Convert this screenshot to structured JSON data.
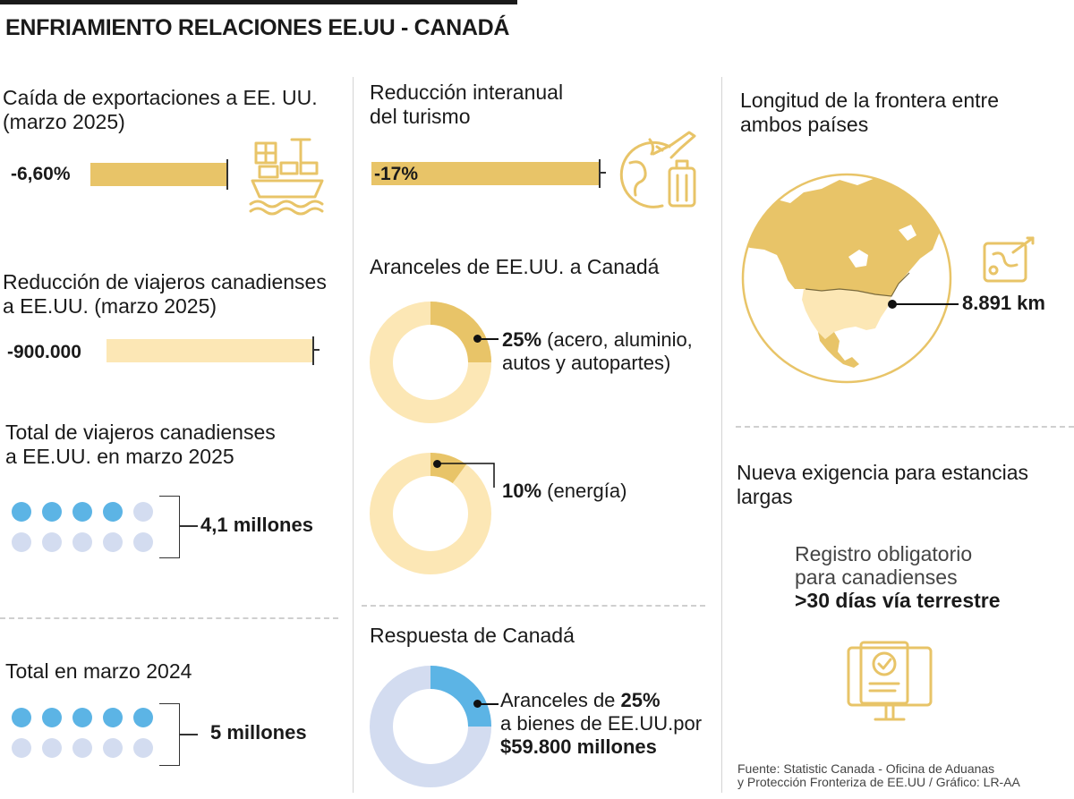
{
  "title": "ENFRIAMIENTO RELACIONES EE.UU - CANADÁ",
  "colors": {
    "gold": "#e8c468",
    "pale_gold": "#fce7b5",
    "blue": "#5cb4e5",
    "light_blue": "#d3dcf0"
  },
  "exports": {
    "heading_line1": "Caída de exportaciones a EE. UU.",
    "heading_line2": "(marzo 2025)",
    "value": "-6,60%",
    "icon": "cargo-ship-icon"
  },
  "travelers_drop": {
    "heading_line1": "Reducción de viajeros canadienses",
    "heading_line2": "a EE.UU. (marzo 2025)",
    "value": "-900.000"
  },
  "travelers_2025": {
    "heading_line1": "Total de viajeros canadienses",
    "heading_line2": "a EE.UU. en marzo 2025",
    "value": "4,1 millones",
    "filled_dots": 4,
    "total_dots": 10
  },
  "travelers_2024": {
    "heading": "Total en marzo 2024",
    "value": "5 millones",
    "filled_dots": 5,
    "total_dots": 10
  },
  "tourism": {
    "heading_line1": "Reducción interanual",
    "heading_line2": "del turismo",
    "value": "-17%",
    "icon": "travel-globe-luggage-icon"
  },
  "tariffs": {
    "heading": "Aranceles de EE.UU. a Canadá",
    "steel": {
      "percent": 25,
      "value": "25%",
      "label_line1": "(acero, aluminio,",
      "label_line2": "autos y autopartes)"
    },
    "energy": {
      "percent": 10,
      "value": "10%",
      "label": "(energía)"
    }
  },
  "response": {
    "heading": "Respuesta de Canadá",
    "percent": 25,
    "line1_prefix": "Aranceles de",
    "line1_value": "25%",
    "line2": "a bienes de EE.UU.por",
    "line3": "$59.800 millones"
  },
  "border": {
    "heading_line1": "Longitud de la frontera entre",
    "heading_line2": "ambos países",
    "value": "8.891 km",
    "icon": "map-route-icon"
  },
  "requirement": {
    "heading_line1": "Nueva exigencia para estancias",
    "heading_line2": "largas",
    "line1": "Registro obligatorio",
    "line2": "para canadienses",
    "line3": ">30 días vía terrestre",
    "icon": "online-registration-icon"
  },
  "source_line1": "Fuente: Statistic Canada - Oficina de Aduanas",
  "source_line2": "y Protección Fronteriza de EE.UU / Gráfico: LR-AA"
}
